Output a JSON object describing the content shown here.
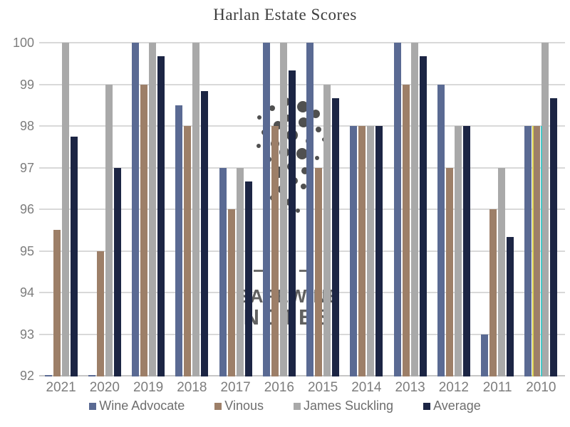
{
  "title": "Harlan Estate Scores",
  "watermark": {
    "line1": "SAFEWINE",
    "line2": "NOTES"
  },
  "legend": {
    "items": [
      "Wine Advocate",
      "Vinous",
      "James Suckling",
      "Average"
    ]
  },
  "colors": {
    "wine_advocate": "#5a6a93",
    "vinous": "#9d7f68",
    "james_suckling": "#a9a9a9",
    "average": "#1c2544",
    "gridline": "#d9d9d9",
    "axis_text": "#7d7d7d",
    "legend_text": "#6e6e6e",
    "title_text": "#3e3e3e"
  },
  "chart_data": {
    "type": "bar",
    "title": "Harlan Estate Scores",
    "categories": [
      "2021",
      "2020",
      "2019",
      "2018",
      "2017",
      "2016",
      "2015",
      "2014",
      "2013",
      "2012",
      "2011",
      "2010"
    ],
    "series": [
      {
        "name": "Wine Advocate",
        "color": "#5a6a93",
        "values": [
          null,
          null,
          100,
          98.5,
          97,
          100,
          100,
          98,
          100,
          99,
          93,
          98
        ]
      },
      {
        "name": "Vinous",
        "color": "#9d7f68",
        "values": [
          95.5,
          95,
          99,
          98,
          96,
          98,
          97,
          98,
          99,
          97,
          96,
          98
        ]
      },
      {
        "name": "James Suckling",
        "color": "#a9a9a9",
        "values": [
          100,
          99,
          100,
          100,
          97,
          100,
          99,
          98,
          100,
          98,
          97,
          100
        ]
      },
      {
        "name": "Average",
        "color": "#1c2544",
        "values": [
          97.75,
          97,
          99.67,
          98.83,
          96.67,
          99.33,
          98.67,
          98,
          99.67,
          98,
          95.33,
          98.67
        ]
      }
    ],
    "ylim": [
      92,
      100
    ],
    "yticks": [
      "100",
      "99",
      "98",
      "97",
      "96",
      "95",
      "94",
      "93",
      "92"
    ],
    "grid": true,
    "legend_position": "bottom",
    "xlabel": "",
    "ylabel": "",
    "artifact_slivers": [
      {
        "category": "2010",
        "value": 98,
        "color": "#d9d24f",
        "side": "left-of-vinous"
      },
      {
        "category": "2010",
        "value": 98,
        "color": "#45c8c8",
        "side": "right-of-vinous"
      }
    ]
  }
}
